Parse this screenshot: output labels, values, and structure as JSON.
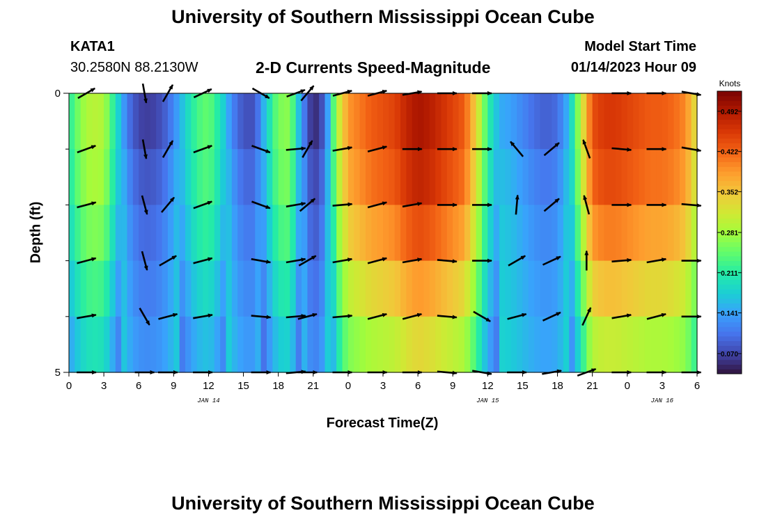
{
  "header": {
    "title": "University of Southern Mississippi Ocean Cube",
    "station": "KATA1",
    "coords": "30.2580N  88.2130W",
    "subtitle": "2-D Currents Speed-Magnitude",
    "model_start_label": "Model Start Time",
    "model_start_value": "01/14/2023 Hour 09",
    "footer_title": "University of Southern Mississippi Ocean Cube"
  },
  "chart_data": {
    "type": "heatmap",
    "xlabel": "Forecast Time(Z)",
    "ylabel": "Depth (ft)",
    "x_tick_labels": [
      "0",
      "3",
      "6",
      "9",
      "12",
      "15",
      "18",
      "21",
      "0",
      "3",
      "6",
      "9",
      "12",
      "15",
      "18",
      "21",
      "0",
      "3",
      "6"
    ],
    "date_labels": [
      {
        "label": "JAN 14",
        "at_hour": 12
      },
      {
        "label": "JAN 15",
        "at_hour": 36
      },
      {
        "label": "JAN 16",
        "at_hour": 51
      }
    ],
    "y_tick_labels": [
      "0",
      "5"
    ],
    "xlim_hours": [
      0,
      54
    ],
    "ylim_ft": [
      0,
      5
    ],
    "depth_levels_ft": [
      0,
      1,
      2,
      3,
      4,
      5
    ],
    "colorbar": {
      "unit": "Knots",
      "min": 0.035,
      "max": 0.527,
      "tick_labels": [
        "0.070",
        "0.141",
        "0.211",
        "0.281",
        "0.352",
        "0.422",
        "0.492"
      ],
      "tick_values": [
        0.07,
        0.141,
        0.211,
        0.281,
        0.352,
        0.422,
        0.492
      ],
      "colors": [
        "#30123b",
        "#4145ab",
        "#4675ed",
        "#39a2fc",
        "#1bcfd4",
        "#24eca6",
        "#61fc6c",
        "#a4fc3b",
        "#d1e834",
        "#f3c63a",
        "#fe9b2d",
        "#f36315",
        "#d93806",
        "#b11901",
        "#7a0402"
      ]
    },
    "speed_profile_by_hour": [
      [
        0,
        0.21
      ],
      [
        1,
        0.27
      ],
      [
        2,
        0.3
      ],
      [
        3,
        0.29
      ],
      [
        4,
        0.2
      ],
      [
        5,
        0.11
      ],
      [
        6,
        0.07
      ],
      [
        7,
        0.065
      ],
      [
        8,
        0.08
      ],
      [
        9,
        0.12
      ],
      [
        10,
        0.18
      ],
      [
        11,
        0.23
      ],
      [
        12,
        0.25
      ],
      [
        13,
        0.2
      ],
      [
        14,
        0.12
      ],
      [
        15,
        0.08
      ],
      [
        16,
        0.08
      ],
      [
        17,
        0.18
      ],
      [
        18,
        0.26
      ],
      [
        19,
        0.27
      ],
      [
        20,
        0.13
      ],
      [
        21,
        0.045
      ],
      [
        22,
        0.09
      ],
      [
        23,
        0.29
      ],
      [
        24,
        0.39
      ],
      [
        25,
        0.41
      ],
      [
        26,
        0.43
      ],
      [
        27,
        0.44
      ],
      [
        28,
        0.45
      ],
      [
        29,
        0.48
      ],
      [
        30,
        0.5
      ],
      [
        31,
        0.49
      ],
      [
        32,
        0.47
      ],
      [
        33,
        0.45
      ],
      [
        34,
        0.43
      ],
      [
        35,
        0.34
      ],
      [
        36,
        0.22
      ],
      [
        37,
        0.15
      ],
      [
        38,
        0.14
      ],
      [
        39,
        0.12
      ],
      [
        40,
        0.1
      ],
      [
        41,
        0.09
      ],
      [
        42,
        0.1
      ],
      [
        43,
        0.16
      ],
      [
        44,
        0.3
      ],
      [
        45,
        0.44
      ],
      [
        46,
        0.46
      ],
      [
        47,
        0.46
      ],
      [
        48,
        0.45
      ],
      [
        49,
        0.44
      ],
      [
        50,
        0.43
      ],
      [
        51,
        0.43
      ],
      [
        52,
        0.42
      ],
      [
        53,
        0.4
      ],
      [
        54,
        0.32
      ]
    ],
    "depth_attenuation": [
      1.0,
      0.99,
      0.93,
      0.83,
      0.72,
      0.62
    ],
    "vectors_direction_deg": {
      "hours": [
        1.5,
        6.5,
        8.5,
        11.5,
        16.5,
        19.5,
        20.5,
        23.5,
        26.5,
        29.5,
        32.5,
        35.5,
        38.5,
        41.5,
        44.5,
        47.5,
        50.5,
        53.5
      ],
      "depth_0": [
        30,
        -80,
        60,
        25,
        -30,
        20,
        50,
        15,
        15,
        10,
        0,
        0,
        null,
        null,
        null,
        0,
        0,
        -10
      ],
      "depth_1": [
        20,
        -80,
        60,
        20,
        -20,
        5,
        60,
        10,
        15,
        0,
        0,
        0,
        130,
        40,
        110,
        -5,
        0,
        -10
      ],
      "depth_2": [
        15,
        -75,
        50,
        20,
        -20,
        10,
        40,
        5,
        15,
        10,
        0,
        0,
        85,
        40,
        105,
        0,
        0,
        -5
      ],
      "depth_3": [
        15,
        -75,
        30,
        15,
        -10,
        10,
        30,
        10,
        15,
        10,
        -5,
        0,
        30,
        25,
        90,
        5,
        10,
        0
      ],
      "depth_4": [
        10,
        -60,
        15,
        10,
        -5,
        5,
        15,
        5,
        15,
        15,
        -5,
        -30,
        15,
        25,
        65,
        10,
        15,
        0
      ],
      "depth_5": [
        0,
        0,
        0,
        0,
        0,
        5,
        0,
        0,
        0,
        0,
        -5,
        -10,
        0,
        10,
        20,
        0,
        0,
        0
      ]
    }
  }
}
